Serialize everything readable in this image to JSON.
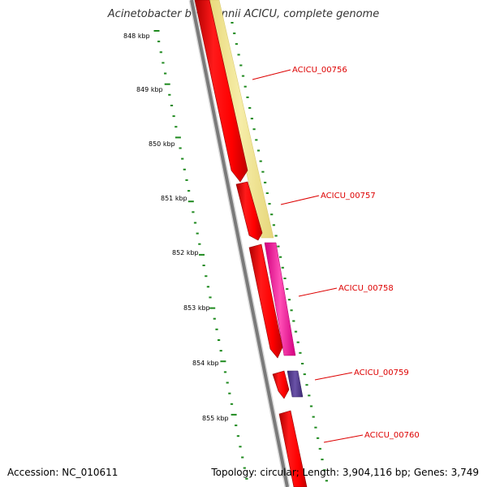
{
  "header": {
    "title": "Acinetobacter baumannii ACICU, complete genome"
  },
  "footer": {
    "accession": "Accession: NC_010611",
    "stats": "Topology: circular; Length: 3,904,116 bp; Genes: 3,749"
  },
  "ruler": {
    "labels": [
      "848 kbp",
      "849 kbp",
      "850 kbp",
      "851 kbp",
      "852 kbp",
      "853 kbp",
      "854 kbp",
      "855 kbp"
    ]
  },
  "genes": [
    {
      "name": "ACICU_00756",
      "strand": "forward"
    },
    {
      "name": "ACICU_00757",
      "strand": "forward"
    },
    {
      "name": "ACICU_00758",
      "strand": "forward"
    },
    {
      "name": "ACICU_00759",
      "strand": "forward"
    },
    {
      "name": "ACICU_00760",
      "strand": "forward"
    }
  ],
  "colors": {
    "cds": "#ff0000",
    "backbone": "#888888",
    "tick": "#1f8a1f",
    "gene_label": "#dd0000",
    "feature_yellow": "#f3e79b",
    "feature_pink": "#ff33aa",
    "feature_purple": "#5b3f96"
  }
}
